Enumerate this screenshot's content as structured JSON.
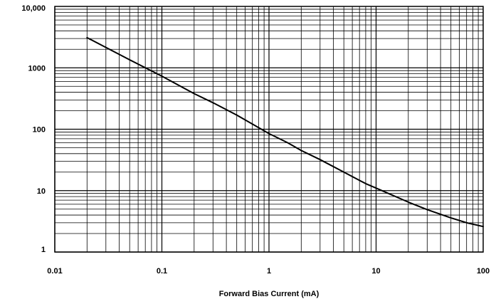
{
  "chart_data": {
    "type": "line",
    "title": "",
    "xlabel": "Forward Bias Current (mA)",
    "ylabel": "",
    "x_scale": "log",
    "y_scale": "log",
    "xlim": [
      0.01,
      100
    ],
    "ylim": [
      1,
      10000
    ],
    "grid": true,
    "x_ticks": [
      {
        "value": 0.01,
        "label": "0.01"
      },
      {
        "value": 0.1,
        "label": "0.1"
      },
      {
        "value": 1,
        "label": "1"
      },
      {
        "value": 10,
        "label": "10"
      },
      {
        "value": 100,
        "label": "100"
      }
    ],
    "y_ticks": [
      {
        "value": 1,
        "label": "1"
      },
      {
        "value": 10,
        "label": "10"
      },
      {
        "value": 100,
        "label": "100"
      },
      {
        "value": 1000,
        "label": "1000"
      },
      {
        "value": 10000,
        "label": "10,000"
      }
    ],
    "series": [
      {
        "color": "#000000",
        "x": [
          0.02,
          0.03,
          0.05,
          0.1,
          0.2,
          0.3,
          0.5,
          1,
          1.5,
          2,
          3,
          5,
          8,
          10,
          20,
          30,
          50,
          70,
          100
        ],
        "y": [
          3100,
          2150,
          1350,
          730,
          380,
          270,
          170,
          85,
          60,
          45,
          32,
          20,
          13,
          11,
          6.5,
          4.9,
          3.6,
          3.0,
          2.6
        ]
      }
    ]
  }
}
